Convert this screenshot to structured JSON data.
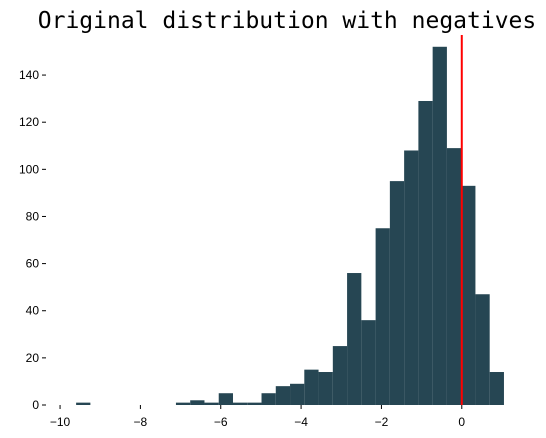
{
  "chart_data": {
    "type": "bar",
    "title": "Original distribution with negatives",
    "xlabel": "",
    "ylabel": "",
    "xlim": [
      -10.3,
      1.3
    ],
    "ylim": [
      0,
      157
    ],
    "x_ticks": [
      -10,
      -8,
      -6,
      -4,
      -2,
      0
    ],
    "x_tick_labels": [
      "−10",
      "−8",
      "−6",
      "−4",
      "−2",
      "0"
    ],
    "y_ticks": [
      0,
      20,
      40,
      60,
      80,
      100,
      120,
      140
    ],
    "y_tick_labels": [
      "0",
      "20",
      "40",
      "60",
      "80",
      "100",
      "120",
      "140"
    ],
    "grid": false,
    "bin_width": 0.355,
    "bins": [
      {
        "x0": -9.6,
        "count": 1
      },
      {
        "x0": -9.245,
        "count": 0
      },
      {
        "x0": -8.89,
        "count": 0
      },
      {
        "x0": -8.535,
        "count": 0
      },
      {
        "x0": -8.18,
        "count": 0
      },
      {
        "x0": -7.825,
        "count": 0
      },
      {
        "x0": -7.47,
        "count": 0
      },
      {
        "x0": -7.115,
        "count": 1
      },
      {
        "x0": -6.76,
        "count": 2
      },
      {
        "x0": -6.405,
        "count": 1
      },
      {
        "x0": -6.05,
        "count": 5
      },
      {
        "x0": -5.695,
        "count": 1
      },
      {
        "x0": -5.34,
        "count": 1
      },
      {
        "x0": -4.985,
        "count": 5
      },
      {
        "x0": -4.63,
        "count": 8
      },
      {
        "x0": -4.275,
        "count": 9
      },
      {
        "x0": -3.92,
        "count": 15
      },
      {
        "x0": -3.565,
        "count": 14
      },
      {
        "x0": -3.21,
        "count": 25
      },
      {
        "x0": -2.855,
        "count": 56
      },
      {
        "x0": -2.5,
        "count": 36
      },
      {
        "x0": -2.145,
        "count": 75
      },
      {
        "x0": -1.79,
        "count": 95
      },
      {
        "x0": -1.435,
        "count": 108
      },
      {
        "x0": -1.08,
        "count": 129
      },
      {
        "x0": -0.725,
        "count": 152
      },
      {
        "x0": -0.37,
        "count": 109
      },
      {
        "x0": -0.015,
        "count": 93
      },
      {
        "x0": 0.34,
        "count": 47
      },
      {
        "x0": 0.695,
        "count": 14
      }
    ],
    "vline_x": 0,
    "colors": {
      "bar": "#264653",
      "vline": "#ff0000",
      "axis": "#000000"
    }
  }
}
